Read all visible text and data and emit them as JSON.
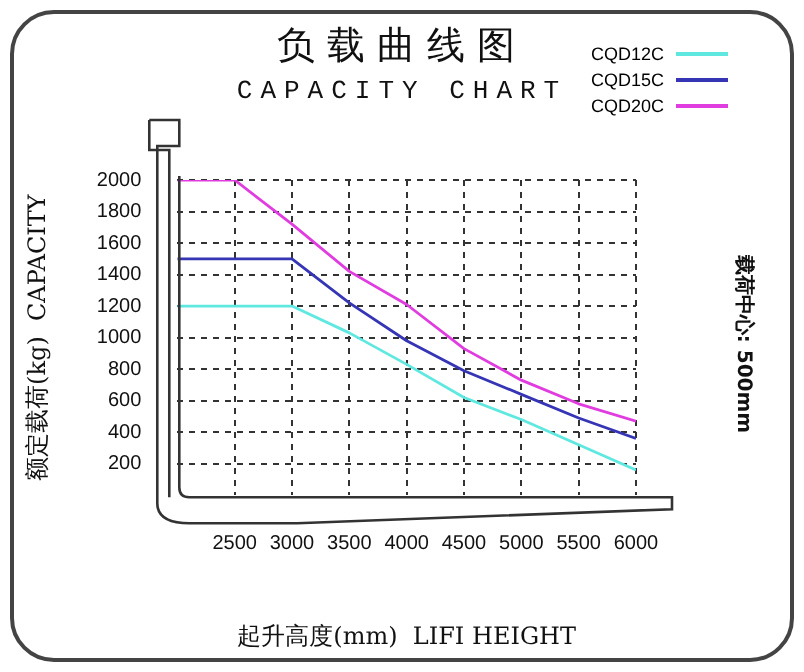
{
  "chart_data": {
    "type": "line",
    "title": "负载曲线图",
    "subtitle": "CAPACITY CHART",
    "xlabel": "起升高度(mm)  LIFI HEIGHT",
    "ylabel": "额定载荷(kg)  CAPACITY",
    "annotations": [
      "载荷中心: 500mm"
    ],
    "x": [
      2000,
      2500,
      3000,
      3500,
      4000,
      4500,
      5000,
      5500,
      6000
    ],
    "series": [
      {
        "name": "CQD12C",
        "color": "#5fe8e0",
        "values": [
          1200,
          1200,
          1200,
          1030,
          830,
          620,
          480,
          320,
          160
        ]
      },
      {
        "name": "CQD15C",
        "color": "#3535b5",
        "values": [
          1500,
          1500,
          1500,
          1220,
          980,
          790,
          640,
          490,
          360
        ]
      },
      {
        "name": "CQD20C",
        "color": "#e03ce0",
        "values": [
          2000,
          2000,
          1720,
          1420,
          1210,
          930,
          730,
          580,
          470
        ]
      }
    ],
    "xlim": [
      2000,
      6000
    ],
    "xticks": [
      2500,
      3000,
      3500,
      4000,
      4500,
      5000,
      5500,
      6000
    ],
    "ylim": [
      0,
      2000
    ],
    "yticks": [
      200,
      400,
      600,
      800,
      1000,
      1200,
      1400,
      1600,
      1800,
      2000
    ],
    "grid": true,
    "legend": "top right",
    "marker": "none",
    "line_style": "solid"
  }
}
